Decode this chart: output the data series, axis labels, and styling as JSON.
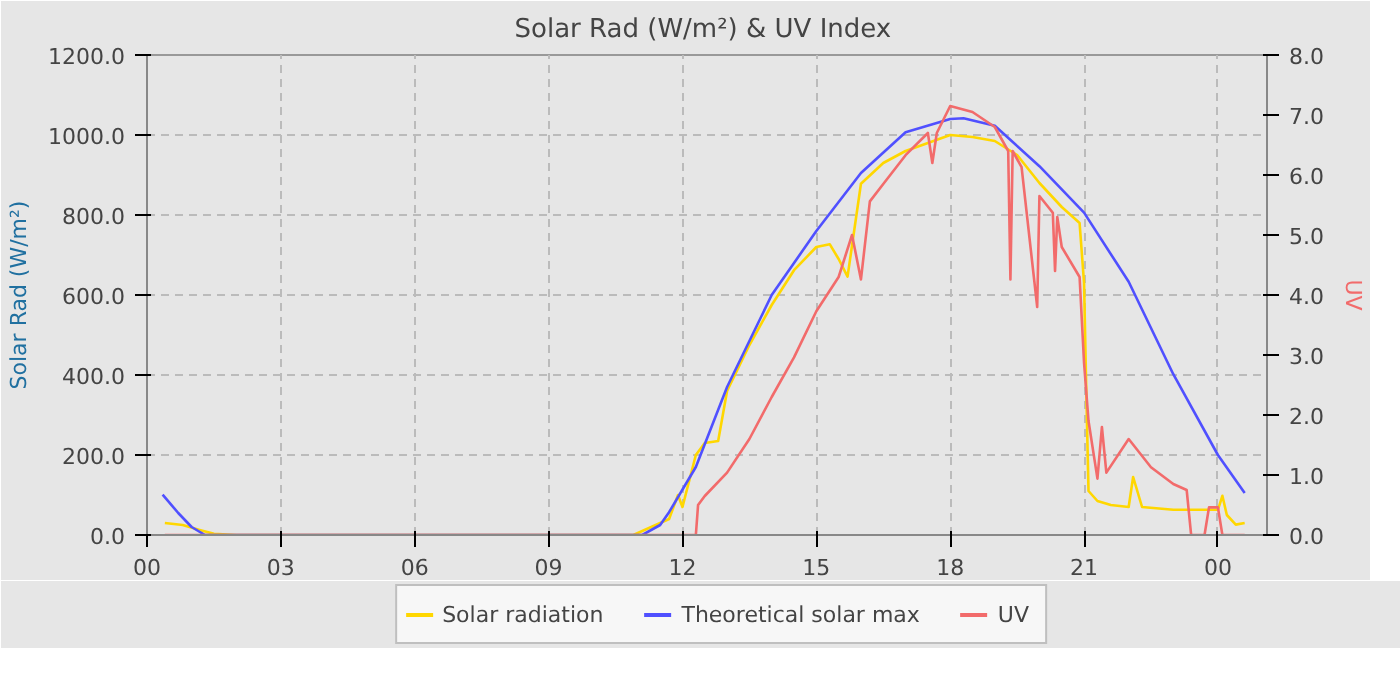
{
  "chart_data": {
    "type": "line",
    "title": "Solar Rad (W/m²) &  UV Index",
    "ylabel": "Solar Rad (W/m²)",
    "y2label": "UV",
    "xlim": [
      0,
      25.1
    ],
    "ylim": [
      0,
      1200
    ],
    "y2lim": [
      0,
      8
    ],
    "xticks": [
      {
        "value": 0,
        "label": "00"
      },
      {
        "value": 3,
        "label": "03"
      },
      {
        "value": 6,
        "label": "06"
      },
      {
        "value": 9,
        "label": "09"
      },
      {
        "value": 12,
        "label": "12"
      },
      {
        "value": 15,
        "label": "15"
      },
      {
        "value": 18,
        "label": "18"
      },
      {
        "value": 21,
        "label": "21"
      },
      {
        "value": 24,
        "label": "00"
      }
    ],
    "yticks": [
      {
        "value": 0,
        "label": "0.0"
      },
      {
        "value": 200,
        "label": "200.0"
      },
      {
        "value": 400,
        "label": "400.0"
      },
      {
        "value": 600,
        "label": "600.0"
      },
      {
        "value": 800,
        "label": "800.0"
      },
      {
        "value": 1000,
        "label": "1000.0"
      },
      {
        "value": 1200,
        "label": "1200.0"
      }
    ],
    "y2ticks": [
      {
        "value": 0,
        "label": "0.0"
      },
      {
        "value": 1,
        "label": "1.0"
      },
      {
        "value": 2,
        "label": "2.0"
      },
      {
        "value": 3,
        "label": "3.0"
      },
      {
        "value": 4,
        "label": "4.0"
      },
      {
        "value": 5,
        "label": "5.0"
      },
      {
        "value": 6,
        "label": "6.0"
      },
      {
        "value": 7,
        "label": "7.0"
      },
      {
        "value": 8,
        "label": "8.0"
      }
    ],
    "grid": true,
    "legend": "bottom",
    "line_style": "solid",
    "marker": "none",
    "series": [
      {
        "name": "Solar radiation",
        "color": "#ffd700",
        "x": [
          0.4,
          0.8,
          1.2,
          1.5,
          2,
          10.9,
          11.3,
          11.7,
          11.9,
          12.0,
          12.3,
          12.5,
          12.8,
          13.0,
          13.5,
          14.0,
          14.5,
          15.0,
          15.3,
          15.5,
          15.7,
          16.0,
          16.5,
          17.0,
          17.5,
          18.0,
          18.5,
          19.0,
          19.5,
          20.0,
          20.5,
          20.9,
          21.0,
          21.05,
          21.1,
          21.3,
          21.6,
          22.0,
          22.1,
          22.3,
          23.0,
          23.5,
          24.0,
          24.1,
          24.2,
          24.4,
          24.6
        ],
        "values": [
          30,
          25,
          12,
          3,
          0,
          0,
          20,
          40,
          100,
          70,
          200,
          230,
          235,
          360,
          475,
          575,
          662,
          720,
          727,
          690,
          646,
          878,
          930,
          960,
          980,
          1000,
          995,
          985,
          950,
          880,
          820,
          780,
          630,
          360,
          110,
          85,
          75,
          70,
          145,
          70,
          63,
          63,
          63,
          98,
          50,
          26,
          30
        ]
      },
      {
        "name": "Theoretical solar max",
        "color": "#5050ff",
        "x": [
          0.35,
          0.7,
          1.0,
          1.3,
          2,
          11.1,
          11.5,
          11.7,
          12.3,
          13,
          14,
          15,
          16,
          17,
          18,
          18.3,
          19,
          20,
          21,
          22,
          23,
          24,
          24.6
        ],
        "values": [
          101,
          55,
          20,
          0,
          0,
          0,
          25,
          57,
          170,
          370,
          600,
          760,
          905,
          1007,
          1040,
          1042,
          1023,
          922,
          806,
          633,
          402,
          200,
          105
        ]
      },
      {
        "name": "UV",
        "color": "#f26b6b",
        "axis": "y2",
        "x": [
          0.4,
          12.3,
          12.35,
          12.5,
          13,
          13.5,
          14,
          14.5,
          15,
          15.5,
          15.8,
          16.0,
          16.2,
          16.5,
          17,
          17.5,
          17.6,
          17.7,
          18,
          18.5,
          19,
          19.3,
          19.35,
          19.4,
          19.6,
          19.95,
          20.0,
          20.3,
          20.35,
          20.4,
          20.5,
          20.9,
          21.0,
          21.1,
          21.3,
          21.4,
          21.5,
          22,
          22.5,
          23,
          23.3,
          23.4,
          23.7,
          23.8,
          24.0,
          24.1,
          24.6
        ],
        "values": [
          0,
          0,
          0.5,
          0.65,
          1.04,
          1.6,
          2.3,
          2.96,
          3.73,
          4.3,
          5.0,
          4.26,
          5.56,
          5.85,
          6.33,
          6.7,
          6.2,
          6.7,
          7.15,
          7.05,
          6.8,
          6.4,
          4.26,
          6.4,
          6.13,
          3.8,
          5.65,
          5.37,
          4.4,
          5.3,
          4.8,
          4.3,
          2.87,
          1.9,
          0.94,
          1.8,
          1.04,
          1.6,
          1.13,
          0.85,
          0.75,
          0,
          0,
          0.46,
          0.46,
          0,
          0
        ]
      }
    ]
  }
}
